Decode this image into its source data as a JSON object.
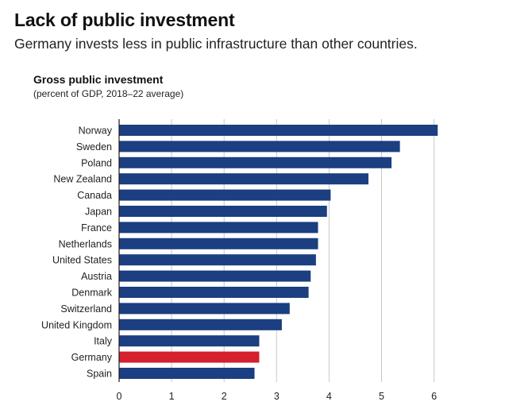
{
  "header": {
    "title": "Lack of public investment",
    "subtitle": "Germany invests less in public infrastructure than other countries."
  },
  "chart_data": {
    "type": "bar",
    "orientation": "horizontal",
    "title": "Gross public investment",
    "subtitle": "(percent of GDP, 2018–22 average)",
    "categories": [
      "Norway",
      "Sweden",
      "Poland",
      "New Zealand",
      "Canada",
      "Japan",
      "France",
      "Netherlands",
      "United States",
      "Austria",
      "Denmark",
      "Switzerland",
      "United Kingdom",
      "Italy",
      "Germany",
      "Spain"
    ],
    "values": [
      6.07,
      5.35,
      5.19,
      4.75,
      4.03,
      3.96,
      3.79,
      3.79,
      3.75,
      3.65,
      3.61,
      3.25,
      3.1,
      2.67,
      2.67,
      2.58
    ],
    "highlight": "Germany",
    "colors": {
      "bar": "#1b3f80",
      "highlight": "#d7202d",
      "grid": "#c8c8c8",
      "axis": "#1a1a1a"
    },
    "xlim": [
      0,
      6
    ],
    "xticks": [
      0,
      1,
      2,
      3,
      4,
      5,
      6
    ],
    "grid": true
  }
}
